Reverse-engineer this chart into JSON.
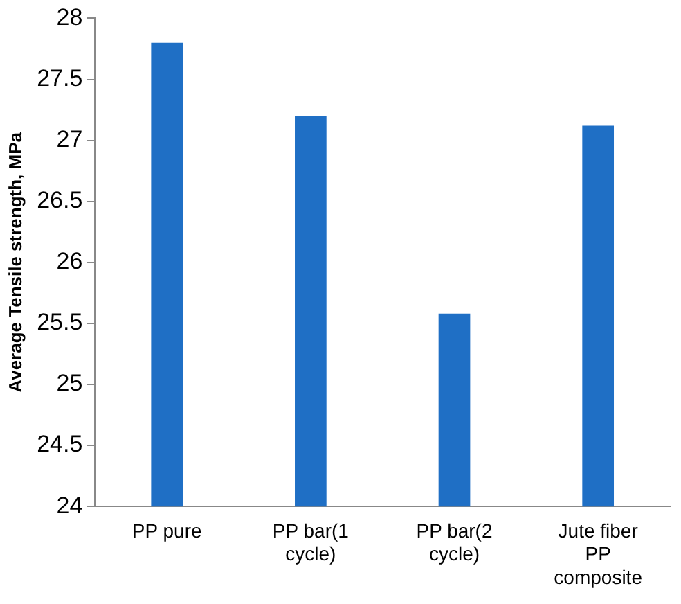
{
  "chart_data": {
    "type": "bar",
    "ylabel": "Average Tensile strength, MPa",
    "categories": [
      "PP pure",
      "PP bar(1 cycle)",
      "PP bar(2 cycle)",
      "Jute fiber PP composite"
    ],
    "values": [
      27.8,
      27.2,
      25.58,
      27.12
    ],
    "color": "#1f6fc5",
    "ylim": [
      24,
      28
    ],
    "yticks": [
      24,
      24.5,
      25,
      25.5,
      26,
      26.5,
      27,
      27.5,
      28
    ],
    "grid": false,
    "legend": false
  }
}
